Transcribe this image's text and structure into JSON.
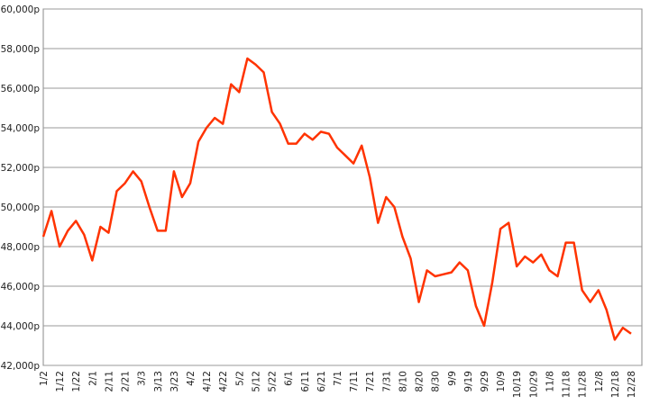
{
  "chart_data": {
    "type": "line",
    "categories": [
      "1/2",
      null,
      "1/12",
      null,
      "1/22",
      null,
      "2/1",
      null,
      "2/11",
      null,
      "2/21",
      null,
      "3/3",
      null,
      "3/13",
      null,
      "3/23",
      null,
      "4/2",
      null,
      "4/12",
      null,
      "4/22",
      null,
      "5/2",
      null,
      "5/12",
      null,
      "5/22",
      null,
      "6/1",
      null,
      "6/11",
      null,
      "6/21",
      null,
      "7/1",
      null,
      "7/11",
      null,
      "7/21",
      null,
      "7/31",
      null,
      "8/10",
      null,
      "8/20",
      null,
      "8/30",
      null,
      "9/9",
      null,
      "9/19",
      null,
      "9/29",
      null,
      "10/9",
      null,
      "10/19",
      null,
      "10/29",
      null,
      "11/8",
      null,
      "11/18",
      null,
      "11/28",
      null,
      "12/8",
      null,
      "12/18",
      null,
      "12/28"
    ],
    "series": [
      {
        "color": "#ff3300",
        "values": [
          48500,
          49800,
          48000,
          48800,
          49300,
          48600,
          47300,
          49000,
          48700,
          50800,
          51200,
          51800,
          51300,
          50000,
          48800,
          48800,
          51800,
          50500,
          51200,
          53300,
          54000,
          54500,
          54200,
          56200,
          55800,
          57500,
          57200,
          56800,
          54800,
          54200,
          53200,
          53200,
          53700,
          53400,
          53800,
          53700,
          53000,
          52600,
          52200,
          53100,
          51500,
          49200,
          50500,
          50000,
          48500,
          47400,
          45200,
          46800,
          46500,
          46600,
          46700,
          47200,
          46800,
          45000,
          44000,
          46200,
          48900,
          49200,
          47000,
          47500,
          47200,
          47600,
          46800,
          46500,
          48200,
          48200,
          45800,
          45200,
          45800,
          44800,
          43300,
          43900,
          43600
        ]
      }
    ],
    "ylim": [
      42000,
      60000
    ],
    "yticks": [
      {
        "value": 42000,
        "label": "42,000p"
      },
      {
        "value": 44000,
        "label": "44,000p"
      },
      {
        "value": 46000,
        "label": "46,000p"
      },
      {
        "value": 48000,
        "label": "48,000p"
      },
      {
        "value": 50000,
        "label": "50,000p"
      },
      {
        "value": 52000,
        "label": "52,000p"
      },
      {
        "value": 54000,
        "label": "54,000p"
      },
      {
        "value": 56000,
        "label": "56,000p"
      },
      {
        "value": 58000,
        "label": "58,000p"
      },
      {
        "value": 60000,
        "label": "60,000p"
      }
    ],
    "grid": true
  }
}
